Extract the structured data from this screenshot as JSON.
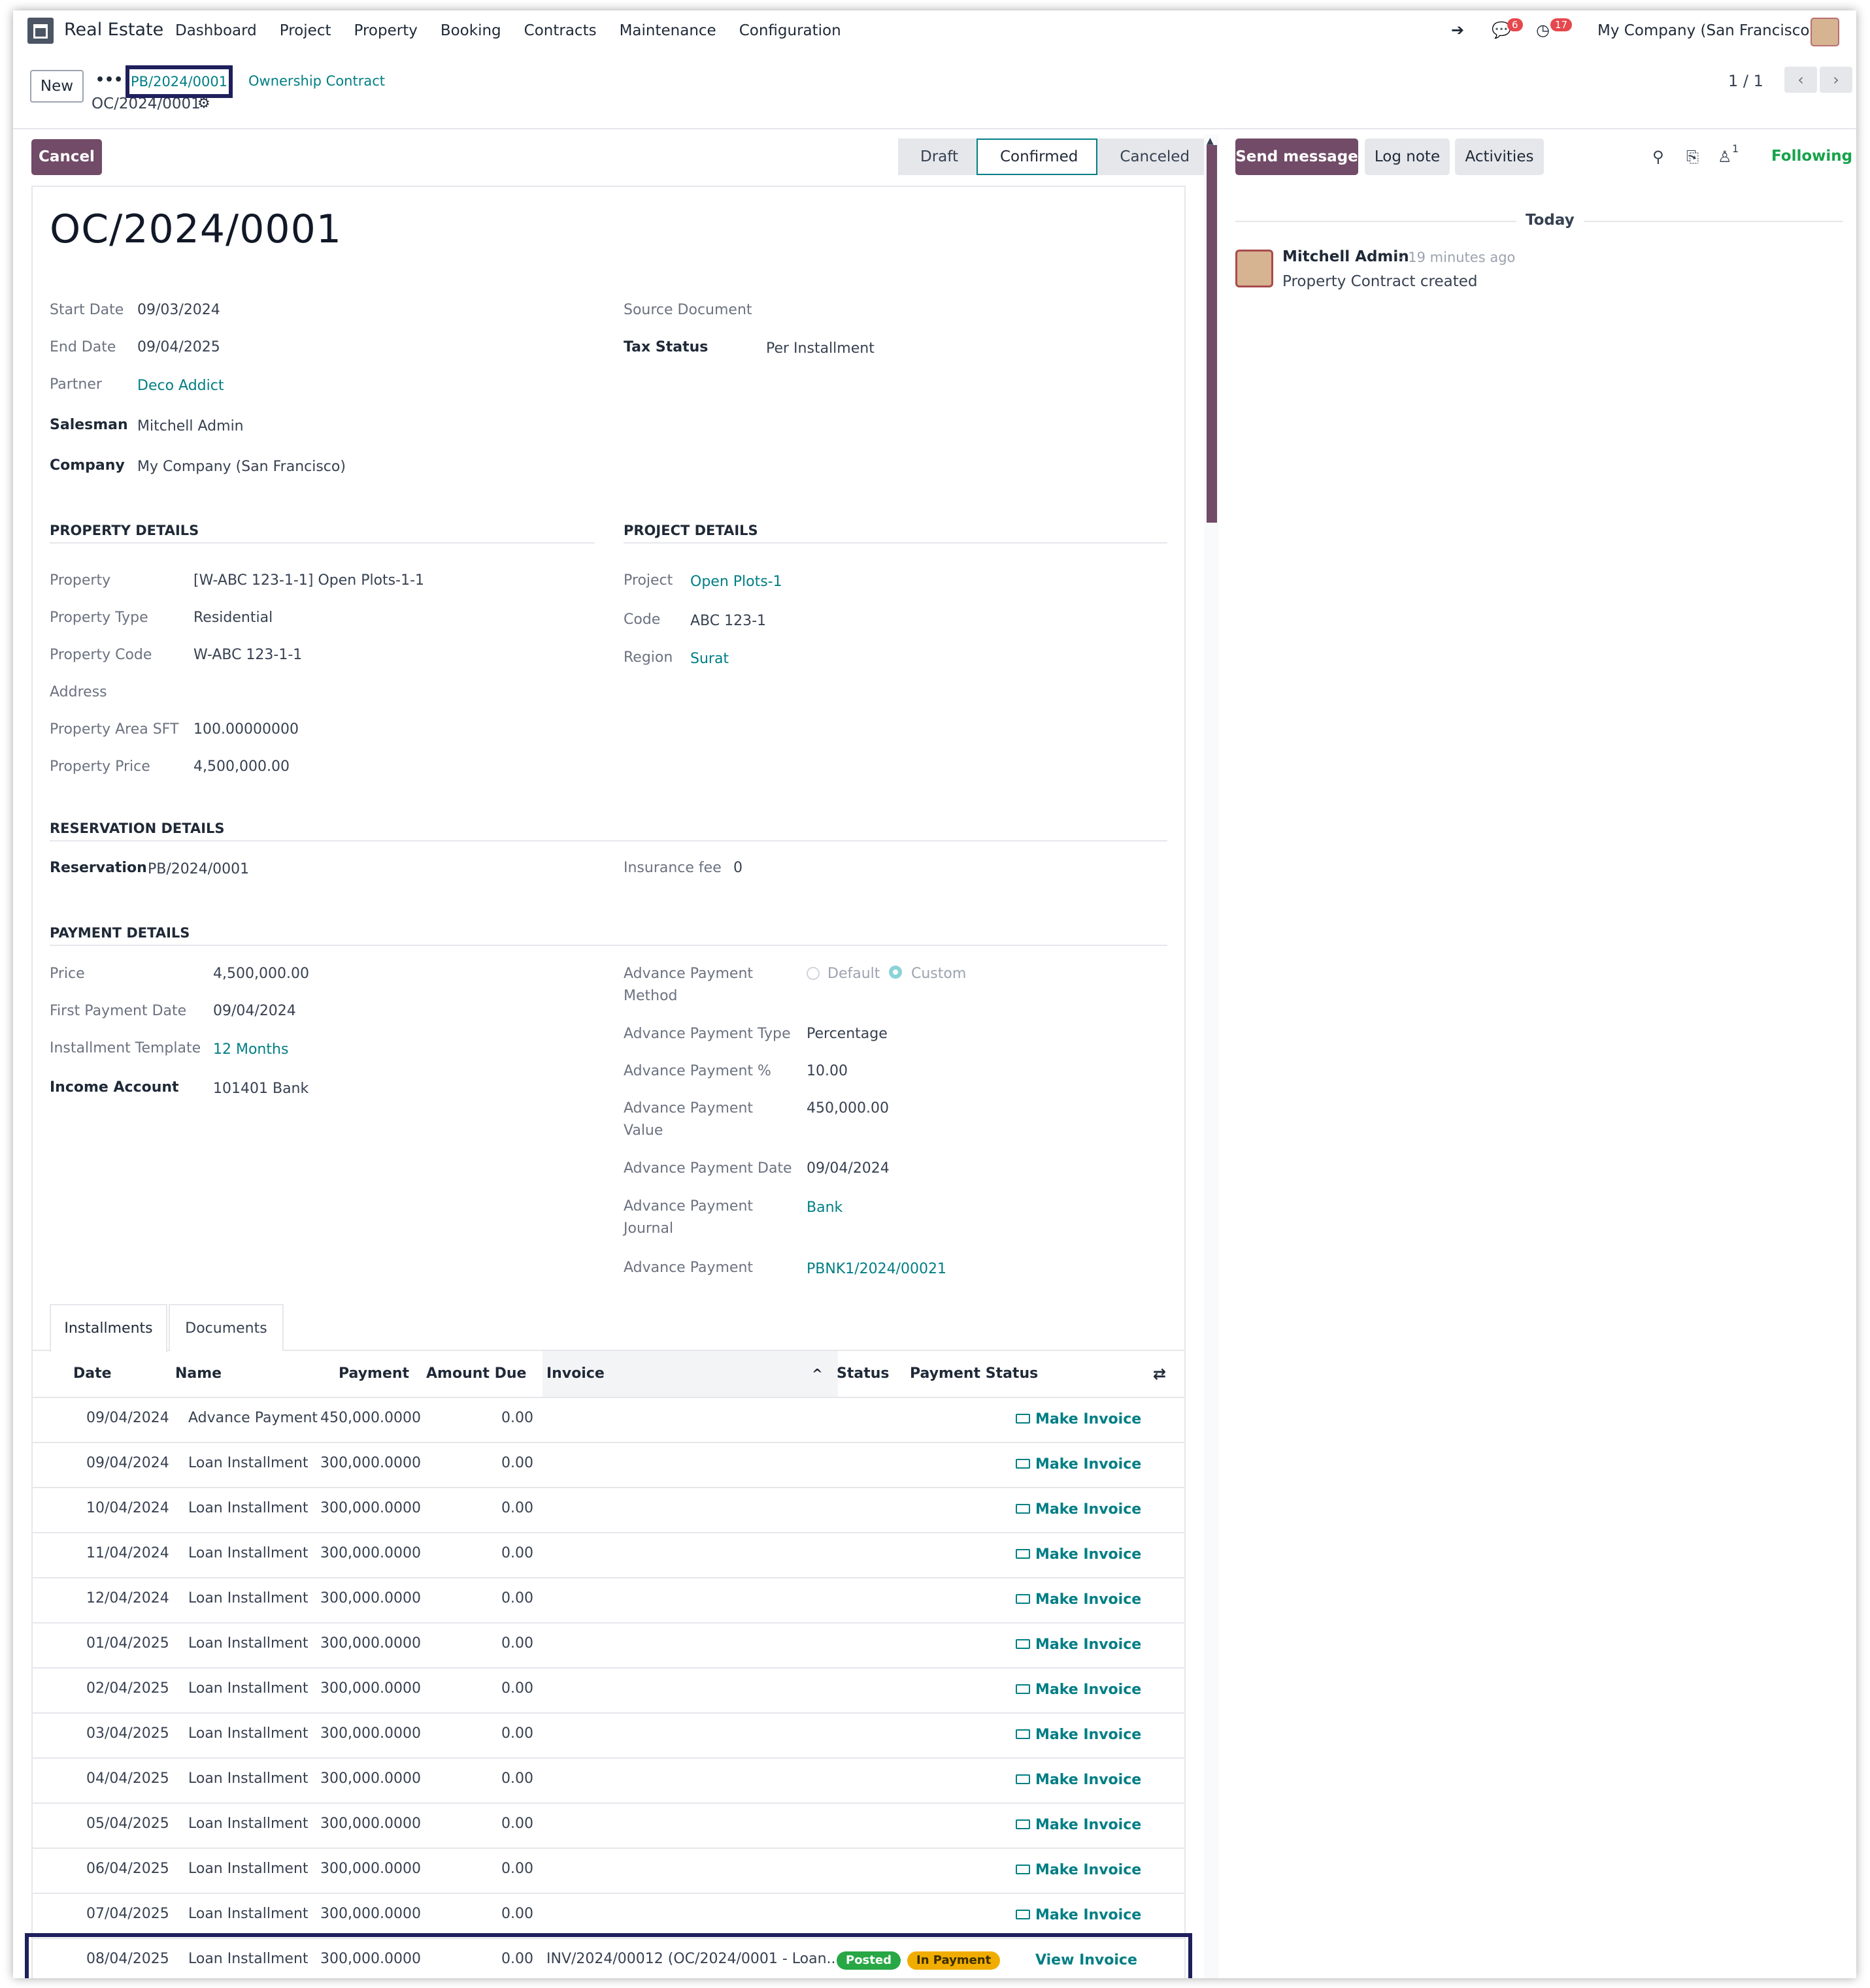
{
  "nav": {
    "app_name": "Real Estate",
    "menu": [
      "Dashboard",
      "Project",
      "Property",
      "Booking",
      "Contracts",
      "Maintenance",
      "Configuration"
    ],
    "messages_count": "6",
    "activities_count": "17",
    "company": "My Company (San Francisco)"
  },
  "control": {
    "new_label": "New",
    "more_label": "•••",
    "breadcrumb_parent": "PB/2024/0001",
    "breadcrumb_section": "Ownership Contract",
    "breadcrumb_current": "OC/2024/0001",
    "pager": "1 / 1"
  },
  "header": {
    "cancel_label": "Cancel",
    "stages": [
      "Draft",
      "Confirmed",
      "Canceled"
    ],
    "active_stage": "Confirmed"
  },
  "record": {
    "title": "OC/2024/0001",
    "start_date_label": "Start Date",
    "start_date": "09/03/2024",
    "end_date_label": "End Date",
    "end_date": "09/04/2025",
    "partner_label": "Partner",
    "partner": "Deco Addict",
    "salesman_label": "Salesman",
    "salesman": "Mitchell Admin",
    "company_label": "Company",
    "company": "My Company (San Francisco)",
    "source_label": "Source Document",
    "tax_status_label": "Tax Status",
    "tax_status": "Per Installment"
  },
  "property": {
    "heading": "PROPERTY DETAILS",
    "property_label": "Property",
    "property": "[W-ABC 123-1-1] Open Plots-1-1",
    "type_label": "Property Type",
    "type": "Residential",
    "code_label": "Property Code",
    "code": "W-ABC 123-1-1",
    "address_label": "Address",
    "area_label": "Property Area SFT",
    "area": "100.00000000",
    "price_label": "Property Price",
    "price": "4,500,000.00"
  },
  "project": {
    "heading": "PROJECT DETAILS",
    "project_label": "Project",
    "project": "Open Plots-1",
    "code_label": "Code",
    "code": "ABC 123-1",
    "region_label": "Region",
    "region": "Surat"
  },
  "reservation": {
    "heading": "RESERVATION DETAILS",
    "reservation_label": "Reservation",
    "reservation": "PB/2024/0001",
    "insurance_label": "Insurance fee",
    "insurance": "0"
  },
  "payment": {
    "heading": "PAYMENT DETAILS",
    "price_label": "Price",
    "price": "4,500,000.00",
    "first_date_label": "First Payment Date",
    "first_date": "09/04/2024",
    "template_label": "Installment Template",
    "template": "12 Months",
    "income_label": "Income Account",
    "income": "101401 Bank",
    "adv_method_label_1": "Advance Payment",
    "adv_method_label_2": "Method",
    "adv_method_options": [
      "Default",
      "Custom"
    ],
    "adv_method_selected": "Custom",
    "adv_type_label": "Advance Payment Type",
    "adv_type": "Percentage",
    "adv_pct_label": "Advance Payment %",
    "adv_pct": "10.00",
    "adv_value_label_1": "Advance Payment",
    "adv_value_label_2": "Value",
    "adv_value": "450,000.00",
    "adv_date_label": "Advance Payment Date",
    "adv_date": "09/04/2024",
    "adv_journal_label_1": "Advance Payment",
    "adv_journal_label_2": "Journal",
    "adv_journal": "Bank",
    "adv_payment_label": "Advance Payment",
    "adv_payment": "PBNK1/2024/00021"
  },
  "tabs": [
    "Installments",
    "Documents"
  ],
  "table": {
    "columns": [
      "Date",
      "Name",
      "Payment",
      "Amount Due",
      "Invoice",
      "Status",
      "Payment Status"
    ],
    "make_invoice_label": "Make Invoice",
    "view_invoice_label": "View Invoice",
    "rows": [
      {
        "date": "09/04/2024",
        "name": "Advance Payment",
        "payment": "450,000.0000",
        "due": "0.00"
      },
      {
        "date": "09/04/2024",
        "name": "Loan Installment",
        "payment": "300,000.0000",
        "due": "0.00"
      },
      {
        "date": "10/04/2024",
        "name": "Loan Installment",
        "payment": "300,000.0000",
        "due": "0.00"
      },
      {
        "date": "11/04/2024",
        "name": "Loan Installment",
        "payment": "300,000.0000",
        "due": "0.00"
      },
      {
        "date": "12/04/2024",
        "name": "Loan Installment",
        "payment": "300,000.0000",
        "due": "0.00"
      },
      {
        "date": "01/04/2025",
        "name": "Loan Installment",
        "payment": "300,000.0000",
        "due": "0.00"
      },
      {
        "date": "02/04/2025",
        "name": "Loan Installment",
        "payment": "300,000.0000",
        "due": "0.00"
      },
      {
        "date": "03/04/2025",
        "name": "Loan Installment",
        "payment": "300,000.0000",
        "due": "0.00"
      },
      {
        "date": "04/04/2025",
        "name": "Loan Installment",
        "payment": "300,000.0000",
        "due": "0.00"
      },
      {
        "date": "05/04/2025",
        "name": "Loan Installment",
        "payment": "300,000.0000",
        "due": "0.00"
      },
      {
        "date": "06/04/2025",
        "name": "Loan Installment",
        "payment": "300,000.0000",
        "due": "0.00"
      },
      {
        "date": "07/04/2025",
        "name": "Loan Installment",
        "payment": "300,000.0000",
        "due": "0.00"
      }
    ],
    "last_row": {
      "date": "08/04/2025",
      "name": "Loan Installment",
      "payment": "300,000.0000",
      "due": "0.00",
      "invoice": "INV/2024/00012 (OC/2024/0001 - Loan...",
      "status": "Posted",
      "payment_status": "In Payment"
    }
  },
  "chatter": {
    "send_label": "Send message",
    "log_label": "Log note",
    "activities_label": "Activities",
    "followers_count": "1",
    "following_label": "Following",
    "date_separator": "Today",
    "author": "Mitchell Admin",
    "time": "- 19 minutes ago",
    "message": "Property Contract created"
  },
  "colors": {
    "brand": "#714b67",
    "link": "#017e84",
    "posted": "#28a745",
    "in_payment": "#f0ad00",
    "highlight": "#1e1f5c"
  }
}
